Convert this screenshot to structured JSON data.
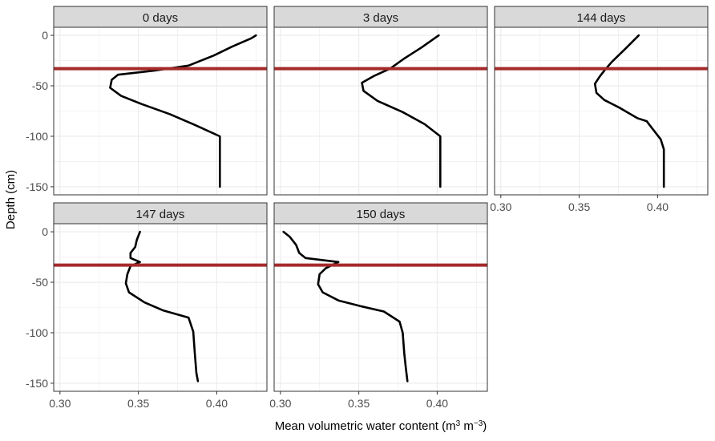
{
  "chart_data": {
    "type": "line",
    "facet_layout": "3 columns, 2 rows; shared axes",
    "xlabel_parts": {
      "main": "Mean volumetric water content (m",
      "sup1": "3",
      "mid": " m",
      "sup2": "−3",
      "end": ")"
    },
    "ylabel": "Depth (cm)",
    "xlim": [
      0.296,
      0.432
    ],
    "ylim": [
      -158,
      8
    ],
    "xticks": [
      0.3,
      0.35,
      0.4
    ],
    "xtick_labels": [
      "0.30",
      "0.35",
      "0.40"
    ],
    "yticks": [
      0,
      -50,
      -100,
      -150
    ],
    "ytick_labels": [
      "0",
      "-50",
      "-100",
      "-150"
    ],
    "grid": true,
    "reference_line": {
      "depth": -33,
      "color": "#a52a2a"
    },
    "line_color": "#000000",
    "panel_border": "#333333",
    "strip_fill": "#d9d9d9",
    "grid_color": "#ebebeb",
    "panels": [
      {
        "label": "0 days",
        "points": [
          [
            0.425,
            0
          ],
          [
            0.422,
            -3
          ],
          [
            0.41,
            -11
          ],
          [
            0.398,
            -20
          ],
          [
            0.382,
            -30
          ],
          [
            0.36,
            -35
          ],
          [
            0.337,
            -39
          ],
          [
            0.333,
            -44
          ],
          [
            0.332,
            -52
          ],
          [
            0.339,
            -60
          ],
          [
            0.352,
            -68
          ],
          [
            0.37,
            -78
          ],
          [
            0.385,
            -88
          ],
          [
            0.402,
            -100
          ],
          [
            0.402,
            -150
          ]
        ]
      },
      {
        "label": "3 days",
        "points": [
          [
            0.401,
            0
          ],
          [
            0.39,
            -12
          ],
          [
            0.379,
            -23
          ],
          [
            0.37,
            -33
          ],
          [
            0.36,
            -40
          ],
          [
            0.352,
            -47
          ],
          [
            0.353,
            -55
          ],
          [
            0.362,
            -65
          ],
          [
            0.378,
            -76
          ],
          [
            0.392,
            -88
          ],
          [
            0.402,
            -100
          ],
          [
            0.402,
            -150
          ]
        ]
      },
      {
        "label": "144 days",
        "points": [
          [
            0.388,
            0
          ],
          [
            0.379,
            -14
          ],
          [
            0.371,
            -26
          ],
          [
            0.367,
            -33
          ],
          [
            0.363,
            -41
          ],
          [
            0.36,
            -48
          ],
          [
            0.361,
            -57
          ],
          [
            0.366,
            -64
          ],
          [
            0.376,
            -72
          ],
          [
            0.387,
            -82
          ],
          [
            0.393,
            -85
          ],
          [
            0.397,
            -93
          ],
          [
            0.402,
            -103
          ],
          [
            0.404,
            -113
          ],
          [
            0.404,
            -150
          ]
        ]
      },
      {
        "label": "147 days",
        "points": [
          [
            0.351,
            0
          ],
          [
            0.349,
            -8
          ],
          [
            0.348,
            -15
          ],
          [
            0.345,
            -21
          ],
          [
            0.345,
            -26
          ],
          [
            0.351,
            -30
          ],
          [
            0.345,
            -34
          ],
          [
            0.343,
            -42
          ],
          [
            0.342,
            -51
          ],
          [
            0.344,
            -60
          ],
          [
            0.354,
            -70
          ],
          [
            0.366,
            -78
          ],
          [
            0.382,
            -85
          ],
          [
            0.385,
            -99
          ],
          [
            0.386,
            -120
          ],
          [
            0.387,
            -140
          ],
          [
            0.388,
            -148
          ]
        ]
      },
      {
        "label": "150 days",
        "points": [
          [
            0.302,
            0
          ],
          [
            0.306,
            -5
          ],
          [
            0.31,
            -13
          ],
          [
            0.312,
            -21
          ],
          [
            0.316,
            -26
          ],
          [
            0.337,
            -30
          ],
          [
            0.329,
            -36
          ],
          [
            0.325,
            -42
          ],
          [
            0.324,
            -52
          ],
          [
            0.327,
            -60
          ],
          [
            0.337,
            -68
          ],
          [
            0.352,
            -74
          ],
          [
            0.366,
            -79
          ],
          [
            0.376,
            -89
          ],
          [
            0.378,
            -100
          ],
          [
            0.379,
            -120
          ],
          [
            0.38,
            -135
          ],
          [
            0.381,
            -148
          ]
        ]
      }
    ]
  }
}
